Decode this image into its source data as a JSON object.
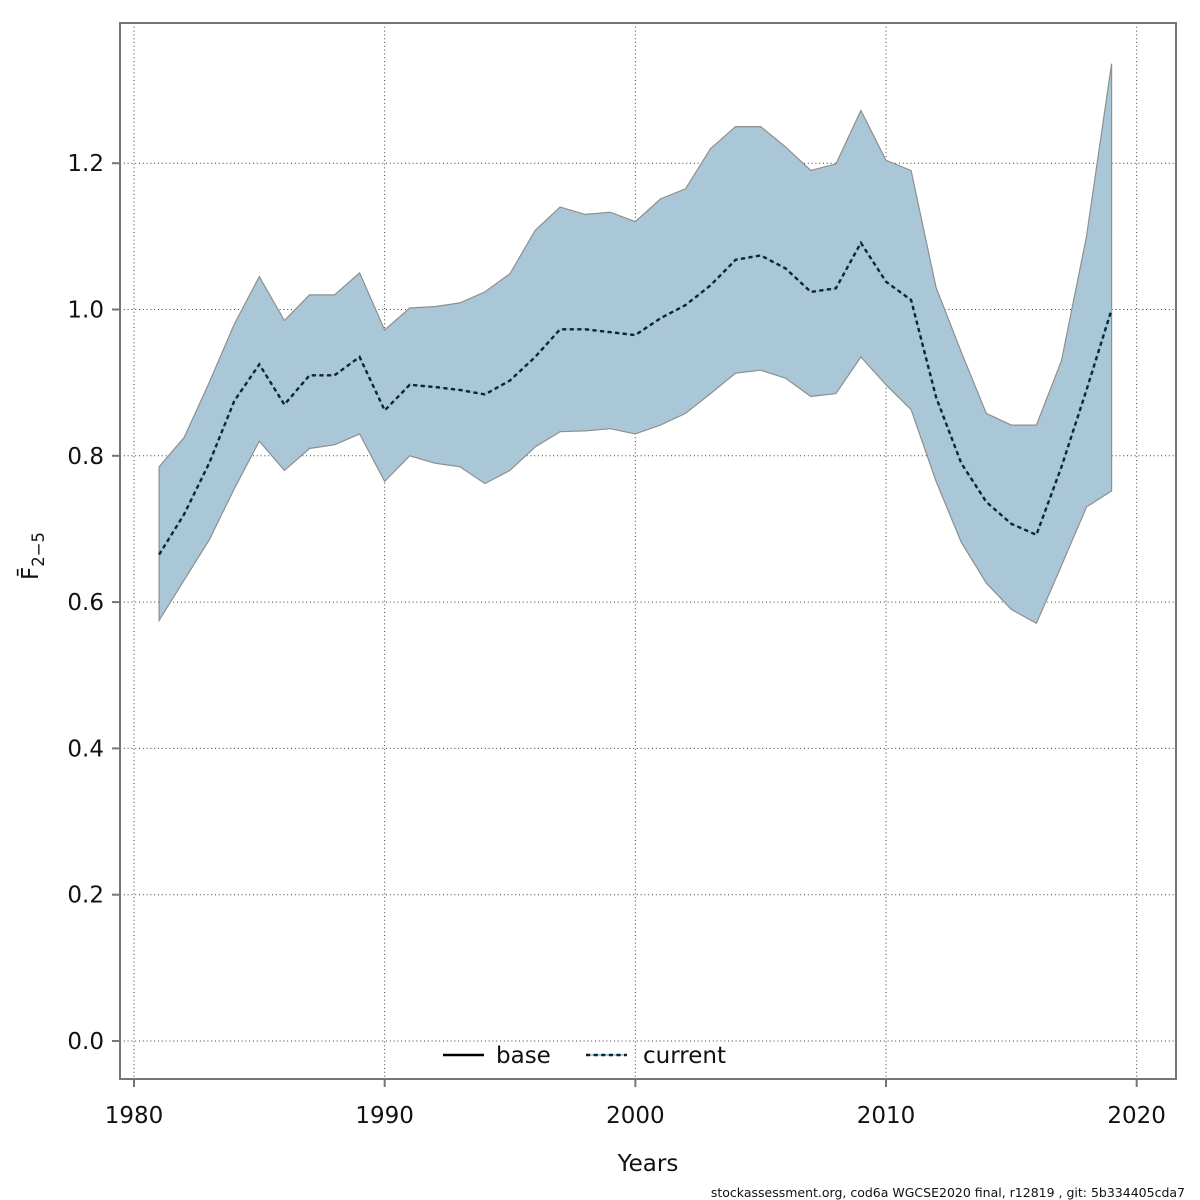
{
  "footer": "stockassessment.org, cod6a WGCSE2020 final, r12819 , git: 5b334405cda7",
  "colors": {
    "band_fill": "#a9c7d7",
    "band_edge": "#8f8f8f",
    "current_dash": "#0e2233",
    "current_underlay": "#86c2e5",
    "base_line": "#000000",
    "grid": "#3d3d3d",
    "frame": "#757575",
    "text": "#111111"
  },
  "chart_data": {
    "type": "line",
    "subtype": "line-with-confidence-band",
    "title": "",
    "xlabel": "Years",
    "ylabel_main": "F̄",
    "ylabel_sub": "2−5",
    "grid": "dotted",
    "legend_position": "bottom-center-inside",
    "x_ticks": [
      1980,
      1990,
      2000,
      2010,
      2020
    ],
    "y_ticks": [
      0.0,
      0.2,
      0.4,
      0.6,
      0.8,
      1.0,
      1.2
    ],
    "y_tick_labels": [
      "0.0",
      "0.2",
      "0.4",
      "0.6",
      "0.8",
      "1.0",
      "1.2"
    ],
    "xlim": [
      1979.4,
      2021.6
    ],
    "ylim": [
      -0.05,
      1.39
    ],
    "legend": [
      {
        "label": "base",
        "style": "solid"
      },
      {
        "label": "current",
        "style": "dotted"
      }
    ],
    "note": "base run coincides with current run; only the dotted current line and its confidence band are visible",
    "years": [
      1981,
      1982,
      1983,
      1984,
      1985,
      1986,
      1987,
      1988,
      1989,
      1990,
      1991,
      1992,
      1993,
      1994,
      1995,
      1996,
      1997,
      1998,
      1999,
      2000,
      2001,
      2002,
      2003,
      2004,
      2005,
      2006,
      2007,
      2008,
      2009,
      2010,
      2011,
      2012,
      2013,
      2014,
      2015,
      2016,
      2017,
      2018,
      2019
    ],
    "series": [
      {
        "name": "current",
        "values": [
          0.665,
          0.72,
          0.79,
          0.875,
          0.925,
          0.87,
          0.91,
          0.91,
          0.935,
          0.862,
          0.897,
          0.894,
          0.89,
          0.884,
          0.903,
          0.935,
          0.973,
          0.973,
          0.969,
          0.965,
          0.988,
          1.006,
          1.033,
          1.068,
          1.074,
          1.056,
          1.024,
          1.029,
          1.091,
          1.038,
          1.013,
          0.88,
          0.79,
          0.737,
          0.707,
          0.692,
          0.785,
          0.89,
          1.0
        ]
      }
    ],
    "band": {
      "lower": [
        0.575,
        0.63,
        0.685,
        0.755,
        0.82,
        0.78,
        0.81,
        0.815,
        0.83,
        0.765,
        0.8,
        0.79,
        0.785,
        0.762,
        0.78,
        0.812,
        0.833,
        0.834,
        0.837,
        0.83,
        0.842,
        0.858,
        0.885,
        0.913,
        0.917,
        0.906,
        0.881,
        0.885,
        0.935,
        0.897,
        0.863,
        0.765,
        0.682,
        0.626,
        0.59,
        0.571,
        0.65,
        0.73,
        0.752
      ],
      "upper": [
        0.785,
        0.825,
        0.9,
        0.98,
        1.045,
        0.985,
        1.02,
        1.02,
        1.05,
        0.972,
        1.002,
        1.004,
        1.009,
        1.024,
        1.049,
        1.108,
        1.14,
        1.13,
        1.133,
        1.12,
        1.151,
        1.165,
        1.22,
        1.25,
        1.25,
        1.222,
        1.19,
        1.199,
        1.272,
        1.204,
        1.19,
        1.03,
        0.942,
        0.858,
        0.842,
        0.842,
        0.93,
        1.1,
        1.336
      ]
    }
  }
}
